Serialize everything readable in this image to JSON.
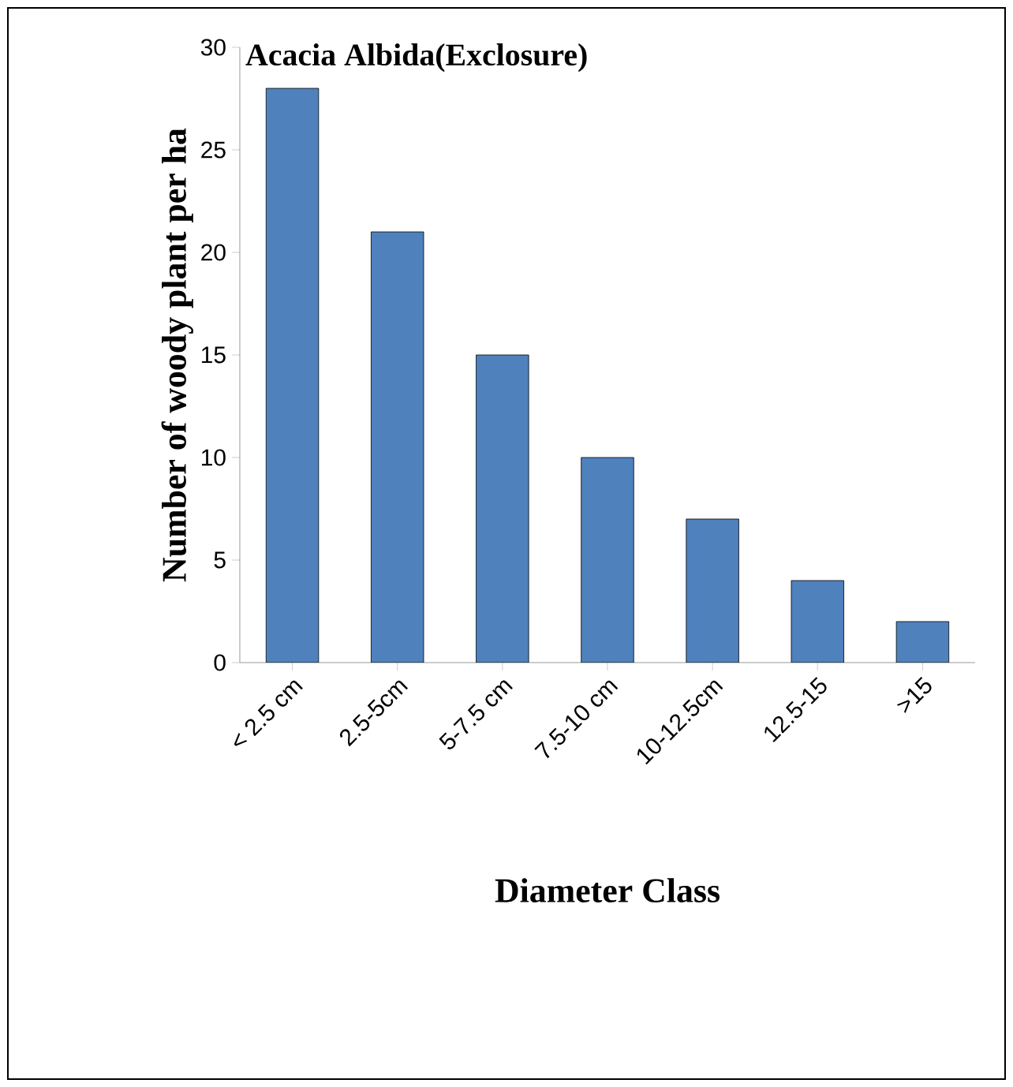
{
  "chart_data": {
    "type": "bar",
    "title": "Acacia Albida(Exclosure)",
    "xlabel": "Diameter Class",
    "ylabel": "Number of woody plant per ha",
    "categories": [
      "< 2.5 cm",
      "2.5-5cm",
      "5-7.5 cm",
      "7.5-10 cm",
      "10-12.5cm",
      "12.5-15",
      ">15"
    ],
    "values": [
      28,
      21,
      15,
      10,
      7,
      4,
      2
    ],
    "color": "#4f81bd",
    "ylim": [
      0,
      30
    ],
    "yticks": [
      0,
      5,
      10,
      15,
      20,
      25,
      30
    ]
  }
}
